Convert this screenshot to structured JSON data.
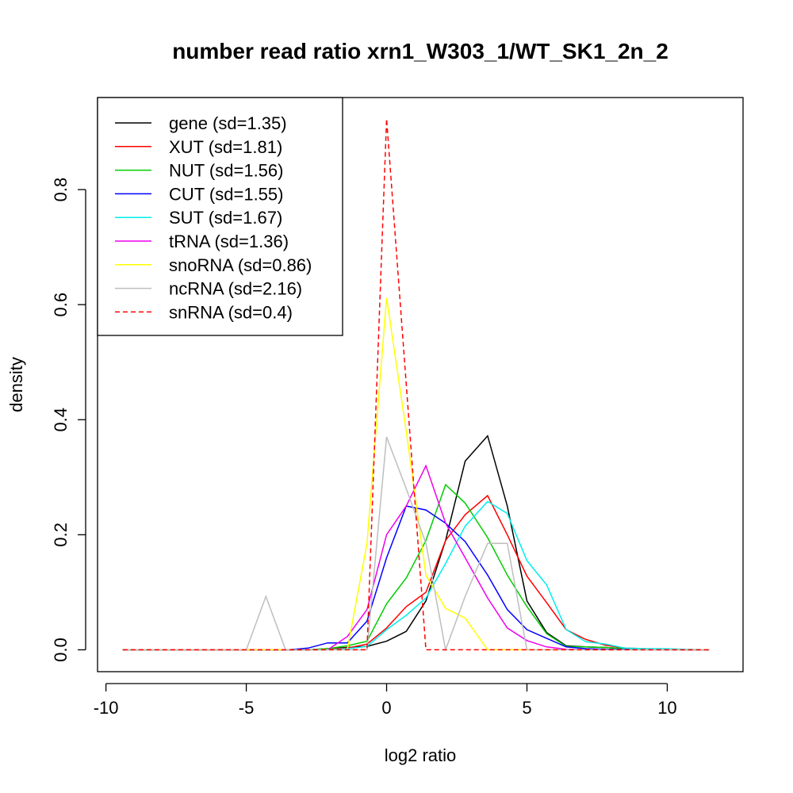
{
  "chart_data": {
    "type": "line",
    "title": "number read ratio xrn1_W303_1/WT_SK1_2n_2",
    "xlabel": "log2 ratio",
    "ylabel": "density",
    "xlim": [
      -10.3,
      12.7
    ],
    "ylim": [
      -0.038,
      0.96
    ],
    "x_ticks": [
      -10,
      -5,
      0,
      5,
      10
    ],
    "x_tick_labels": [
      "-10",
      "-5",
      "0",
      "5",
      "10"
    ],
    "y_ticks": [
      0.0,
      0.2,
      0.4,
      0.6,
      0.8
    ],
    "y_tick_labels": [
      "0.0",
      "0.2",
      "0.4",
      "0.6",
      "0.8"
    ],
    "grid": false,
    "legend_position": "top-left",
    "series": [
      {
        "name": "gene (sd=1.35)",
        "color": "#000000",
        "dashed": false,
        "x": [
          -9.4,
          -2.8,
          -2.1,
          -1.4,
          -0.7,
          0,
          0.7,
          1.4,
          2.1,
          2.8,
          3.6,
          4.3,
          5,
          5.7,
          6.4,
          7.1,
          7.8,
          8.5,
          9.2,
          9.9,
          10.6,
          11.5
        ],
        "y": [
          0,
          0,
          0.002,
          0.004,
          0.006,
          0.015,
          0.032,
          0.085,
          0.19,
          0.328,
          0.372,
          0.25,
          0.085,
          0.03,
          0.007,
          0.005,
          0.004,
          0.002,
          0.001,
          0.001,
          0,
          0
        ]
      },
      {
        "name": "XUT (sd=1.81)",
        "color": "#ff0000",
        "dashed": false,
        "x": [
          -9.4,
          -2.8,
          -2.1,
          -1.4,
          -0.7,
          0,
          0.7,
          1.4,
          2.1,
          2.8,
          3.6,
          4.3,
          5,
          5.7,
          6.4,
          7.1,
          7.8,
          8.5,
          9.2,
          9.9,
          10.6,
          11.5
        ],
        "y": [
          0,
          0,
          0.001,
          0.003,
          0.01,
          0.038,
          0.075,
          0.1,
          0.19,
          0.235,
          0.268,
          0.2,
          0.128,
          0.082,
          0.035,
          0.018,
          0.008,
          0.003,
          0.002,
          0.001,
          0,
          0
        ]
      },
      {
        "name": "NUT (sd=1.56)",
        "color": "#00cd00",
        "dashed": false,
        "x": [
          -9.4,
          -2.8,
          -2.1,
          -1.4,
          -0.7,
          0,
          0.7,
          1.4,
          2.1,
          2.8,
          3.6,
          4.3,
          5,
          5.7,
          6.4,
          7.1,
          7.8,
          8.5,
          9.2,
          9.9,
          10.6,
          11.5
        ],
        "y": [
          0,
          0,
          0.002,
          0.007,
          0.015,
          0.08,
          0.125,
          0.19,
          0.287,
          0.255,
          0.195,
          0.13,
          0.075,
          0.028,
          0.006,
          0.005,
          0.004,
          0.002,
          0.001,
          0.001,
          0,
          0
        ]
      },
      {
        "name": "CUT (sd=1.55)",
        "color": "#0000ff",
        "dashed": false,
        "x": [
          -9.4,
          -3.5,
          -2.8,
          -2.1,
          -1.4,
          -0.7,
          0,
          0.7,
          1.4,
          2.1,
          2.8,
          3.6,
          4.3,
          5,
          5.7,
          6.4,
          7.1,
          7.8,
          8.5,
          9.2,
          10.6,
          11.5
        ],
        "y": [
          0,
          0,
          0.003,
          0.012,
          0.012,
          0.05,
          0.16,
          0.25,
          0.243,
          0.22,
          0.188,
          0.13,
          0.07,
          0.035,
          0.02,
          0.005,
          0.002,
          0.001,
          0.001,
          0,
          0,
          0
        ]
      },
      {
        "name": "SUT (sd=1.67)",
        "color": "#00eeee",
        "dashed": false,
        "x": [
          -9.4,
          -2.1,
          -1.4,
          -0.7,
          0,
          0.7,
          1.4,
          2.1,
          2.8,
          3.6,
          4.3,
          5,
          5.7,
          6.4,
          7.1,
          7.8,
          8.5,
          9.2,
          9.9,
          10.6,
          11.5
        ],
        "y": [
          0,
          0,
          0.002,
          0.006,
          0.035,
          0.06,
          0.09,
          0.15,
          0.215,
          0.258,
          0.237,
          0.155,
          0.113,
          0.035,
          0.014,
          0.01,
          0.003,
          0.002,
          0.002,
          0.001,
          0
        ]
      },
      {
        "name": "tRNA (sd=1.36)",
        "color": "#ee00ee",
        "dashed": false,
        "x": [
          -9.4,
          -2.1,
          -1.4,
          -0.7,
          0,
          0.7,
          1.4,
          2.1,
          2.8,
          3.6,
          4.3,
          5,
          5.7,
          6.4,
          7.1,
          7.8,
          11.5
        ],
        "y": [
          0,
          0,
          0.023,
          0.07,
          0.2,
          0.25,
          0.32,
          0.22,
          0.16,
          0.09,
          0.038,
          0.016,
          0.005,
          0.001,
          0,
          0,
          0
        ]
      },
      {
        "name": "snoRNA (sd=0.86)",
        "color": "#ffff00",
        "dashed": false,
        "x": [
          -9.4,
          -1.4,
          -0.7,
          0,
          0.7,
          1.4,
          2.1,
          2.8,
          3.6,
          11.5
        ],
        "y": [
          0,
          0,
          0.185,
          0.612,
          0.38,
          0.13,
          0.072,
          0.055,
          0,
          0
        ]
      },
      {
        "name": "ncRNA (sd=2.16)",
        "color": "#bebebe",
        "dashed": false,
        "x": [
          -9.4,
          -5,
          -4.3,
          -3.6,
          -0.7,
          0,
          0.7,
          1.4,
          2.1,
          2.8,
          3.6,
          4.3,
          5,
          11.5
        ],
        "y": [
          0,
          0,
          0.093,
          0,
          0,
          0.37,
          0.28,
          0.185,
          0,
          0.093,
          0.185,
          0.185,
          0,
          0
        ]
      },
      {
        "name": "snRNA (sd=0.4)",
        "color": "#ff0000",
        "dashed": true,
        "x": [
          -9.4,
          -0.7,
          0,
          1.4,
          11.5
        ],
        "y": [
          0,
          0,
          0.923,
          0,
          0
        ]
      }
    ]
  }
}
